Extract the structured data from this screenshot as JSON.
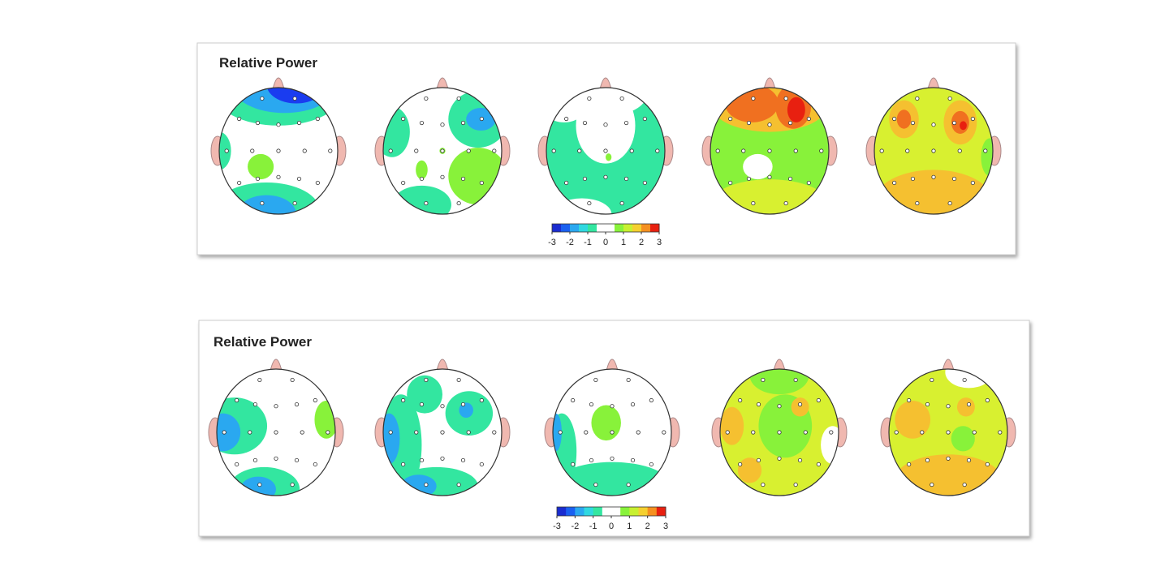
{
  "panels": [
    {
      "title": "Relative Power",
      "colorbar_ticks": [
        -3,
        -2,
        -1,
        0,
        1,
        2,
        3
      ]
    },
    {
      "title": "Relative Power",
      "colorbar_ticks": [
        -3,
        -2,
        -1,
        0,
        1,
        2,
        3
      ]
    }
  ]
}
